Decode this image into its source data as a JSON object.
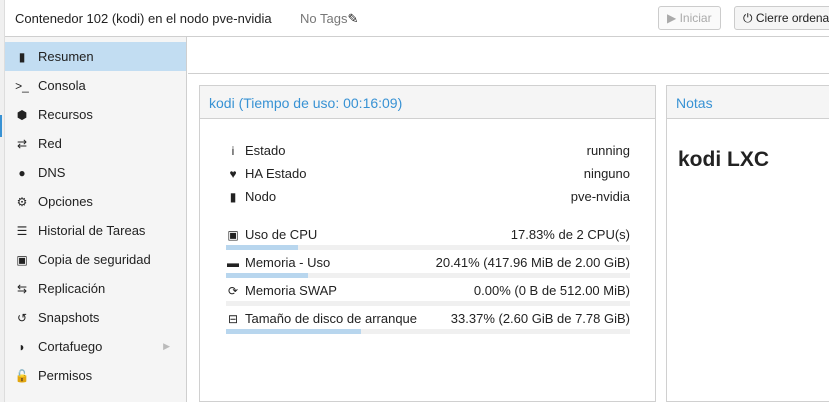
{
  "header": {
    "title": "Contenedor 102 (kodi) en el nodo pve-nvidia",
    "tags": "No Tags",
    "start_label": "Iniciar",
    "shutdown_label": "Cierre ordena"
  },
  "sidebar": {
    "items": [
      {
        "label": "Resumen",
        "icon": "book-icon",
        "glyph": "▮",
        "selected": true
      },
      {
        "label": "Consola",
        "icon": "terminal-icon",
        "glyph": ">_"
      },
      {
        "label": "Recursos",
        "icon": "cube-icon",
        "glyph": "⬢"
      },
      {
        "label": "Red",
        "icon": "exchange-icon",
        "glyph": "⇄"
      },
      {
        "label": "DNS",
        "icon": "globe-icon",
        "glyph": "●"
      },
      {
        "label": "Opciones",
        "icon": "gear-icon",
        "glyph": "⚙"
      },
      {
        "label": "Historial de Tareas",
        "icon": "list-icon",
        "glyph": "☰"
      },
      {
        "label": "Copia de seguridad",
        "icon": "floppy-icon",
        "glyph": "▣"
      },
      {
        "label": "Replicación",
        "icon": "retweet-icon",
        "glyph": "⇆"
      },
      {
        "label": "Snapshots",
        "icon": "history-icon",
        "glyph": "↺"
      },
      {
        "label": "Cortafuego",
        "icon": "shield-icon",
        "glyph": "◗",
        "submenu": true
      },
      {
        "label": "Permisos",
        "icon": "unlock-icon",
        "glyph": "🔓"
      }
    ]
  },
  "status_panel": {
    "title": "kodi (Tiempo de uso: 00:16:09)",
    "info": [
      {
        "label": "Estado",
        "value": "running",
        "icon": "info-icon",
        "glyph": "i"
      },
      {
        "label": "HA Estado",
        "value": "ninguno",
        "icon": "heartbeat-icon",
        "glyph": "♥"
      },
      {
        "label": "Nodo",
        "value": "pve-nvidia",
        "icon": "server-icon",
        "glyph": "▮"
      }
    ],
    "usage": [
      {
        "label": "Uso de CPU",
        "value": "17.83% de 2 CPU(s)",
        "percent": 17.83,
        "icon": "cpu-icon",
        "glyph": "▣"
      },
      {
        "label": "Memoria - Uso",
        "value": "20.41% (417.96 MiB de 2.00 GiB)",
        "percent": 20.41,
        "icon": "memory-icon",
        "glyph": "▬"
      },
      {
        "label": "Memoria SWAP",
        "value": "0.00% (0 B de 512.00 MiB)",
        "percent": 0,
        "icon": "refresh-icon",
        "glyph": "⟳"
      },
      {
        "label": "Tamaño de disco de arranque",
        "value": "33.37% (2.60 GiB de 7.78 GiB)",
        "percent": 33.37,
        "icon": "hdd-icon",
        "glyph": "⊟"
      }
    ]
  },
  "notes_panel": {
    "title": "Notas",
    "content": "kodi LXC"
  },
  "colors": {
    "accent": "#3892d4",
    "selected": "#c2ddf2",
    "bar": "#b8d6ee"
  }
}
